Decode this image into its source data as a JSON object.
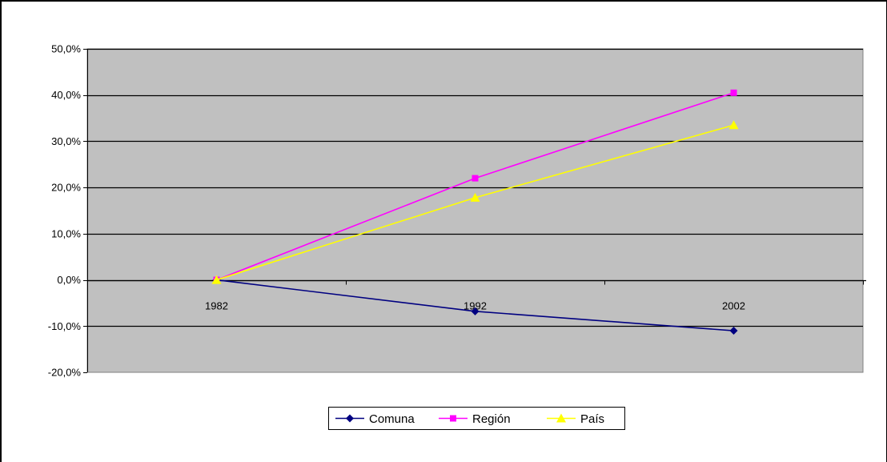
{
  "chart_data": {
    "type": "line",
    "title": "",
    "xlabel": "",
    "ylabel": "",
    "categories": [
      "1982",
      "1992",
      "2002"
    ],
    "ylim": [
      -20,
      50
    ],
    "yticks": [
      -20,
      -10,
      0,
      10,
      20,
      30,
      40,
      50
    ],
    "ytick_labels": [
      "-20,0%",
      "-10,0%",
      "0,0%",
      "10,0%",
      "20,0%",
      "30,0%",
      "40,0%",
      "50,0%"
    ],
    "grid": true,
    "plot_background": "#c0c0c0",
    "legend_position": "bottom",
    "series": [
      {
        "name": "Comuna",
        "values": [
          0,
          -6.8,
          -11.0
        ],
        "color": "#000080",
        "marker": "diamond"
      },
      {
        "name": "Región",
        "values": [
          0,
          22.0,
          40.5
        ],
        "color": "#ff00ff",
        "marker": "square"
      },
      {
        "name": "País",
        "values": [
          0,
          17.8,
          33.5
        ],
        "color": "#ffff00",
        "marker": "triangle"
      }
    ]
  }
}
